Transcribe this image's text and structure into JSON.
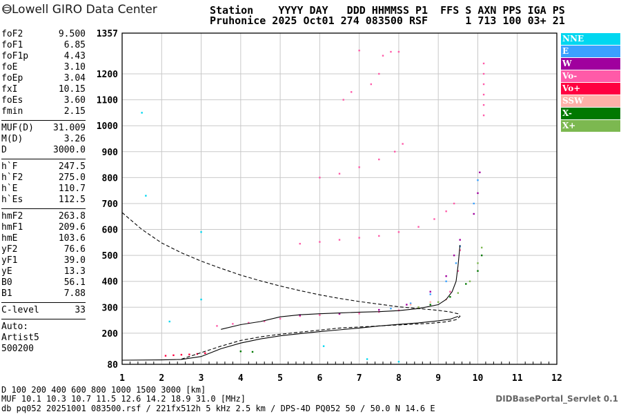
{
  "logo": "Lowell GIRO Data Center",
  "header": {
    "line1": "Station    YYYY DAY   DDD HHMMSS P1  FFS S AXN PPS IGA PS",
    "line2": "Pruhonice 2025 Oct01 274 083500 RSF      1 713 100 03+ 21"
  },
  "params": {
    "group1": [
      {
        "name": "foF2",
        "value": "9.500"
      },
      {
        "name": "foF1",
        "value": "6.85"
      },
      {
        "name": "foF1p",
        "value": "4.43"
      },
      {
        "name": "foE",
        "value": "3.10"
      },
      {
        "name": "foEp",
        "value": "3.04"
      },
      {
        "name": "fxI",
        "value": "10.15"
      },
      {
        "name": "foEs",
        "value": "3.60"
      },
      {
        "name": "fmin",
        "value": "2.15"
      }
    ],
    "group2": [
      {
        "name": "MUF(D)",
        "value": "31.009"
      },
      {
        "name": "M(D)",
        "value": "3.26"
      },
      {
        "name": "D",
        "value": "3000.0"
      }
    ],
    "group3": [
      {
        "name": "h`F",
        "value": "247.5"
      },
      {
        "name": "h`F2",
        "value": "275.0"
      },
      {
        "name": "h`E",
        "value": "110.7"
      },
      {
        "name": "h`Es",
        "value": "112.5"
      }
    ],
    "group4": [
      {
        "name": "hmF2",
        "value": "263.8"
      },
      {
        "name": "hmF1",
        "value": "209.6"
      },
      {
        "name": "hmE",
        "value": "103.6"
      },
      {
        "name": "yF2",
        "value": "76.6"
      },
      {
        "name": "yF1",
        "value": "39.0"
      },
      {
        "name": "yE",
        "value": "13.3"
      },
      {
        "name": "B0",
        "value": "56.1"
      },
      {
        "name": "B1",
        "value": "7.88"
      }
    ],
    "group5": [
      {
        "name": "C-level",
        "value": "33"
      }
    ],
    "auto_label": "Auto:",
    "artist_label": "Artist5",
    "artist_version": "500200"
  },
  "legend": [
    {
      "label": "NNE",
      "color": "#00d7f0"
    },
    {
      "label": "E",
      "color": "#3aa0ff"
    },
    {
      "label": "W",
      "color": "#a0009e"
    },
    {
      "label": "Vo-",
      "color": "#ff5aa8"
    },
    {
      "label": "Vo+",
      "color": "#ff0040"
    },
    {
      "label": "SSW",
      "color": "#ffb0a8"
    },
    {
      "label": "X-",
      "color": "#007800"
    },
    {
      "label": "X+",
      "color": "#7cb850"
    }
  ],
  "bottom": {
    "d_row": "D    100  200  400  600  800 1000 1500 3000 [km]",
    "muf_row": "MUF  10.1 10.3 10.7 11.5 12.6 14.2 18.9 31.0 [MHz]",
    "file_row": "db pq052 20251001 083500.rsf / 221fx512h 5 kHz 2.5 km / DPS-4D PQ052 50 / 50.0 N 14.6 E"
  },
  "servlet": "DIDBasePortal_Servlet 0.1",
  "chart_data": {
    "type": "scatter",
    "xlim": [
      1,
      12
    ],
    "ylim": [
      80,
      1357
    ],
    "x_ticks": [
      1,
      2,
      3,
      4,
      5,
      6,
      7,
      8,
      9,
      10,
      11,
      12
    ],
    "y_ticks": [
      80,
      200,
      300,
      400,
      500,
      600,
      700,
      800,
      900,
      1000,
      1100,
      1200,
      1357
    ],
    "grid": true,
    "legend_position": "right",
    "clusters": [
      {
        "color": "#ff0040",
        "points": [
          [
            2.1,
            113
          ],
          [
            2.3,
            115
          ],
          [
            2.5,
            117
          ],
          [
            2.7,
            118
          ],
          [
            2.9,
            120
          ],
          [
            3.1,
            123
          ]
        ]
      },
      {
        "color": "#ff5aa8",
        "points": [
          [
            3.4,
            228
          ],
          [
            3.8,
            236
          ],
          [
            4.2,
            240
          ],
          [
            4.6,
            246
          ],
          [
            5.0,
            256
          ],
          [
            5.5,
            266
          ],
          [
            6.0,
            270
          ],
          [
            6.5,
            274
          ],
          [
            7.0,
            276
          ],
          [
            7.5,
            282
          ],
          [
            8.0,
            288
          ],
          [
            8.5,
            300
          ],
          [
            9.0,
            320
          ],
          [
            9.3,
            360
          ],
          [
            9.5,
            440
          ],
          [
            9.55,
            520
          ]
        ]
      },
      {
        "color": "#a0009e",
        "points": [
          [
            5.5,
            270
          ],
          [
            6.5,
            275
          ],
          [
            7.5,
            290
          ],
          [
            8.2,
            310
          ],
          [
            8.8,
            360
          ],
          [
            9.2,
            420
          ],
          [
            9.4,
            500
          ],
          [
            9.55,
            560
          ],
          [
            9.9,
            660
          ],
          [
            10.0,
            740
          ],
          [
            10.05,
            820
          ]
        ]
      },
      {
        "color": "#3aa0ff",
        "points": [
          [
            7.8,
            295
          ],
          [
            8.3,
            315
          ],
          [
            8.8,
            350
          ],
          [
            9.2,
            400
          ],
          [
            9.45,
            470
          ],
          [
            9.55,
            535
          ],
          [
            9.9,
            700
          ],
          [
            10.0,
            790
          ]
        ]
      },
      {
        "color": "#7cb850",
        "points": [
          [
            8.5,
            300
          ],
          [
            9.0,
            320
          ],
          [
            9.5,
            355
          ],
          [
            9.8,
            400
          ],
          [
            10.0,
            470
          ],
          [
            10.1,
            530
          ]
        ]
      },
      {
        "color": "#007800",
        "points": [
          [
            8.8,
            310
          ],
          [
            9.3,
            340
          ],
          [
            9.7,
            390
          ],
          [
            10.0,
            440
          ],
          [
            10.1,
            500
          ],
          [
            4.0,
            130
          ],
          [
            4.3,
            128
          ]
        ]
      },
      {
        "color": "#ffb0a8",
        "points": [
          [
            8.3,
            310
          ],
          [
            8.8,
            320
          ],
          [
            9.2,
            330
          ]
        ]
      },
      {
        "color": "#ff5aa8",
        "points": [
          [
            5.5,
            545
          ],
          [
            6.0,
            552
          ],
          [
            6.5,
            560
          ],
          [
            7.0,
            568
          ],
          [
            7.5,
            575
          ],
          [
            8.0,
            590
          ],
          [
            8.5,
            610
          ],
          [
            8.9,
            640
          ],
          [
            9.2,
            670
          ],
          [
            9.4,
            700
          ]
        ]
      },
      {
        "color": "#ff5aa8",
        "points": [
          [
            6.0,
            800
          ],
          [
            6.5,
            815
          ],
          [
            7.0,
            840
          ],
          [
            7.5,
            870
          ],
          [
            7.9,
            900
          ],
          [
            8.1,
            930
          ]
        ]
      },
      {
        "color": "#ff5aa8",
        "points": [
          [
            6.6,
            1100
          ],
          [
            6.8,
            1130
          ],
          [
            7.3,
            1160
          ],
          [
            7.5,
            1200
          ],
          [
            7.6,
            1270
          ],
          [
            7.8,
            1285
          ],
          [
            8.0,
            1285
          ],
          [
            7.0,
            1290
          ]
        ]
      },
      {
        "color": "#ff5aa8",
        "points": [
          [
            10.15,
            1040
          ],
          [
            10.15,
            1080
          ],
          [
            10.15,
            1120
          ],
          [
            10.15,
            1160
          ],
          [
            10.15,
            1200
          ],
          [
            10.15,
            1240
          ]
        ]
      },
      {
        "color": "#00d7f0",
        "points": [
          [
            1.5,
            1050
          ],
          [
            1.6,
            730
          ],
          [
            3.0,
            590
          ],
          [
            2.2,
            245
          ],
          [
            3.0,
            330
          ],
          [
            6.1,
            150
          ],
          [
            7.2,
            100
          ],
          [
            8.0,
            90
          ]
        ]
      }
    ],
    "curves": [
      {
        "style": "dashed",
        "points": [
          [
            1.0,
            665
          ],
          [
            1.5,
            600
          ],
          [
            2.0,
            548
          ],
          [
            2.5,
            510
          ],
          [
            3.0,
            478
          ],
          [
            3.5,
            450
          ],
          [
            4.0,
            424
          ],
          [
            4.5,
            402
          ],
          [
            5.0,
            382
          ],
          [
            5.5,
            364
          ],
          [
            6.0,
            348
          ],
          [
            6.5,
            334
          ],
          [
            7.0,
            322
          ],
          [
            7.5,
            312
          ],
          [
            8.0,
            302
          ],
          [
            8.5,
            295
          ],
          [
            9.0,
            288
          ],
          [
            9.3,
            282
          ],
          [
            9.5,
            275
          ],
          [
            9.55,
            265
          ],
          [
            9.45,
            252
          ],
          [
            9.2,
            244
          ],
          [
            8.8,
            238
          ],
          [
            8.0,
            232
          ],
          [
            7.0,
            224
          ],
          [
            6.5,
            220
          ],
          [
            6.0,
            212
          ],
          [
            5.5,
            204
          ],
          [
            5.0,
            196
          ],
          [
            4.5,
            186
          ],
          [
            4.0,
            172
          ],
          [
            3.5,
            150
          ],
          [
            3.0,
            125
          ],
          [
            2.7,
            110
          ],
          [
            2.5,
            100
          ]
        ]
      },
      {
        "style": "solid",
        "points": [
          [
            1.0,
            96
          ],
          [
            2.0,
            97
          ],
          [
            2.3,
            98
          ],
          [
            2.5,
            99
          ],
          [
            3.0,
            110
          ],
          [
            3.5,
            140
          ],
          [
            4.0,
            162
          ],
          [
            4.5,
            178
          ],
          [
            5.0,
            190
          ],
          [
            5.5,
            198
          ],
          [
            6.0,
            206
          ],
          [
            6.5,
            213
          ],
          [
            7.0,
            220
          ],
          [
            7.5,
            228
          ],
          [
            8.0,
            234
          ],
          [
            8.5,
            240
          ],
          [
            9.0,
            248
          ],
          [
            9.3,
            254
          ],
          [
            9.5,
            265
          ]
        ]
      },
      {
        "style": "solid",
        "points": [
          [
            3.5,
            215
          ],
          [
            4.0,
            233
          ],
          [
            4.5,
            245
          ],
          [
            5.0,
            263
          ],
          [
            5.5,
            271
          ],
          [
            6.0,
            275
          ],
          [
            6.5,
            278
          ],
          [
            7.0,
            281
          ],
          [
            7.5,
            283
          ],
          [
            8.0,
            287
          ],
          [
            8.5,
            295
          ],
          [
            9.0,
            310
          ],
          [
            9.2,
            330
          ],
          [
            9.35,
            360
          ],
          [
            9.45,
            400
          ],
          [
            9.5,
            460
          ],
          [
            9.55,
            540
          ]
        ]
      }
    ]
  }
}
